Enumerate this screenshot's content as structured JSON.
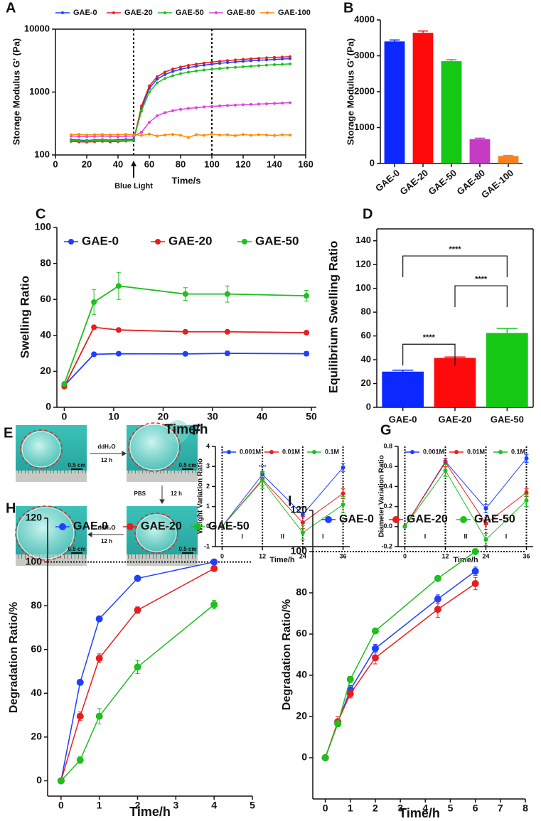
{
  "chart_data": [
    {
      "type": "line",
      "panel": "A",
      "ylabel": "Storage Modulus G' (Pa)",
      "xlabel": "Time/s",
      "annotation": "Blue Light",
      "log_y": true,
      "x": [
        10,
        15,
        20,
        25,
        30,
        35,
        40,
        45,
        50,
        55,
        60,
        65,
        70,
        75,
        80,
        85,
        90,
        95,
        100,
        105,
        110,
        115,
        120,
        125,
        130,
        135,
        140,
        145,
        150
      ],
      "xlim": [
        0,
        160
      ],
      "xticks": [
        0,
        20,
        40,
        60,
        80,
        100,
        120,
        140,
        160
      ],
      "ylim": [
        100,
        10000
      ],
      "yticks": [
        100,
        1000,
        10000
      ],
      "vlines": [
        50,
        100
      ],
      "series": [
        {
          "name": "GAE-0",
          "color": "#1f3fff",
          "values": [
            175,
            172,
            170,
            173,
            175,
            172,
            174,
            176,
            178,
            550,
            1150,
            1600,
            1900,
            2120,
            2300,
            2450,
            2570,
            2680,
            2780,
            2860,
            2940,
            3010,
            3080,
            3140,
            3200,
            3250,
            3300,
            3350,
            3400
          ]
        },
        {
          "name": "GAE-20",
          "color": "#e81e1e",
          "values": [
            165,
            162,
            160,
            163,
            165,
            162,
            164,
            166,
            168,
            600,
            1250,
            1750,
            2080,
            2320,
            2500,
            2650,
            2780,
            2890,
            2990,
            3080,
            3160,
            3240,
            3310,
            3380,
            3440,
            3500,
            3550,
            3600,
            3650
          ]
        },
        {
          "name": "GAE-50",
          "color": "#1fbf1f",
          "values": [
            170,
            168,
            166,
            170,
            172,
            170,
            168,
            170,
            172,
            500,
            1000,
            1400,
            1650,
            1820,
            1960,
            2070,
            2160,
            2240,
            2310,
            2370,
            2430,
            2480,
            2530,
            2580,
            2630,
            2680,
            2720,
            2760,
            2800
          ]
        },
        {
          "name": "GAE-80",
          "color": "#e040e0",
          "values": [
            200,
            198,
            196,
            198,
            200,
            198,
            197,
            199,
            200,
            230,
            330,
            420,
            470,
            505,
            530,
            550,
            565,
            580,
            592,
            603,
            612,
            620,
            628,
            636,
            644,
            652,
            660,
            668,
            676
          ]
        },
        {
          "name": "GAE-100",
          "color": "#ff8c00",
          "values": [
            210,
            212,
            208,
            210,
            211,
            209,
            210,
            212,
            210,
            205,
            215,
            200,
            208,
            212,
            206,
            190,
            210,
            205,
            214,
            207,
            209,
            203,
            211,
            206,
            210,
            208,
            204,
            209,
            207
          ]
        }
      ]
    },
    {
      "type": "bar",
      "panel": "B",
      "ylabel": "Storage Modulus G' (Pa)",
      "categories": [
        "GAE-0",
        "GAE-20",
        "GAE-50",
        "GAE-80",
        "GAE-100"
      ],
      "values": [
        3400,
        3640,
        2850,
        680,
        210
      ],
      "errors": [
        40,
        50,
        40,
        25,
        15
      ],
      "colors": [
        "#0a28ff",
        "#ff0a0a",
        "#14c814",
        "#c43cc4",
        "#f58220"
      ],
      "ylim": [
        0,
        4000
      ],
      "yticks": [
        0,
        1000,
        2000,
        3000,
        4000
      ]
    },
    {
      "type": "line",
      "panel": "C",
      "ylabel": "Swelling Ratio",
      "xlabel": "Time/h",
      "x": [
        0,
        6,
        11,
        24.5,
        33,
        49
      ],
      "xlim": [
        -1.5,
        51
      ],
      "xticks": [
        0,
        10,
        20,
        30,
        40,
        50
      ],
      "ylim": [
        0,
        100
      ],
      "yticks": [
        0,
        20,
        40,
        60,
        80,
        100
      ],
      "series": [
        {
          "name": "GAE-0",
          "color": "#1f3fff",
          "values": [
            12,
            29.5,
            29.8,
            29.7,
            30,
            29.8
          ],
          "errors": [
            1,
            1,
            1,
            1,
            1.2,
            1.2
          ]
        },
        {
          "name": "GAE-20",
          "color": "#e81e1e",
          "values": [
            11.5,
            44.5,
            43,
            42,
            42,
            41.5
          ],
          "errors": [
            1,
            1,
            1,
            0.6,
            0.6,
            0.6
          ]
        },
        {
          "name": "GAE-50",
          "color": "#1fbf1f",
          "values": [
            13,
            58.5,
            67.5,
            63,
            63,
            62
          ],
          "errors": [
            1,
            7,
            7.5,
            3.5,
            4.5,
            3
          ]
        }
      ]
    },
    {
      "type": "bar",
      "panel": "D",
      "ylabel": "Equilibrium Swelling Ratio",
      "categories": [
        "GAE-0",
        "GAE-20",
        "GAE-50"
      ],
      "values": [
        30,
        41.5,
        62.5
      ],
      "errors": [
        1.2,
        0.8,
        3.8
      ],
      "colors": [
        "#0a28ff",
        "#ff0a0a",
        "#14c814"
      ],
      "ylim": [
        0,
        150
      ],
      "yticks": [
        0,
        20,
        40,
        60,
        80,
        100,
        120,
        140
      ],
      "comparisons": [
        {
          "pair": [
            0,
            1
          ],
          "label": "****"
        },
        {
          "pair": [
            1,
            2
          ],
          "label": "****"
        },
        {
          "pair": [
            0,
            2
          ],
          "label": "****"
        }
      ]
    },
    {
      "type": "line",
      "panel": "F",
      "ylabel": "Weight Variation Ratio",
      "xlabel": "Time/h",
      "x": [
        0,
        12,
        24,
        36
      ],
      "xlim": [
        -2,
        38
      ],
      "xticks": [
        0,
        12,
        24,
        36
      ],
      "ylim": [
        -1,
        4
      ],
      "yticks": [
        -1,
        0,
        1,
        2,
        3,
        4
      ],
      "vlines": [
        0,
        12,
        24,
        36
      ],
      "regions": [
        "I",
        "II",
        "I"
      ],
      "sig_labels": [
        null,
        "****",
        "****",
        null
      ],
      "series": [
        {
          "name": "0.001M",
          "color": "#1f3fff",
          "values": [
            0,
            2.6,
            0.6,
            2.95
          ],
          "errors": [
            0,
            0.15,
            0.1,
            0.2
          ]
        },
        {
          "name": "0.01M",
          "color": "#e81e1e",
          "values": [
            0,
            2.35,
            0.2,
            1.65
          ],
          "errors": [
            0,
            0.3,
            0.3,
            0.25
          ]
        },
        {
          "name": "0.1M",
          "color": "#1fbf1f",
          "values": [
            0,
            2.3,
            -0.3,
            1.1
          ],
          "errors": [
            0,
            0.4,
            0.35,
            0.4
          ]
        }
      ]
    },
    {
      "type": "line",
      "panel": "G",
      "ylabel": "Diameter Variation Ratio",
      "xlabel": "Time/h",
      "x": [
        0,
        12,
        24,
        36
      ],
      "xlim": [
        -2,
        38
      ],
      "xticks": [
        0,
        12,
        24,
        36
      ],
      "ylim": [
        -0.2,
        0.8
      ],
      "yticks": [
        -0.2,
        {
          "value": 0,
          "label": "0.0"
        },
        0.2,
        0.4,
        0.6,
        0.8
      ],
      "vlines": [
        0,
        12,
        24,
        36
      ],
      "regions": [
        "I",
        "II",
        "I"
      ],
      "series": [
        {
          "name": "0.001M",
          "color": "#1f3fff",
          "values": [
            0,
            0.65,
            0.18,
            0.68
          ],
          "errors": [
            0,
            0.03,
            0.04,
            0.04
          ]
        },
        {
          "name": "0.01M",
          "color": "#e81e1e",
          "values": [
            0,
            0.64,
            0.03,
            0.34
          ],
          "errors": [
            0,
            0.04,
            0.06,
            0.04
          ]
        },
        {
          "name": "0.1M",
          "color": "#1fbf1f",
          "values": [
            0,
            0.56,
            -0.13,
            0.26
          ],
          "errors": [
            0,
            0.06,
            0.06,
            0.06
          ]
        }
      ]
    },
    {
      "type": "line",
      "panel": "H",
      "ylabel": "Degradation Ratio/%",
      "xlabel": "Time/h",
      "x": [
        0,
        0.5,
        1,
        2,
        4
      ],
      "xlim": [
        -0.35,
        5
      ],
      "xticks": [
        0,
        1,
        2,
        3,
        4,
        5
      ],
      "ylim": [
        -7,
        120
      ],
      "yticks": [
        0,
        20,
        40,
        60,
        80,
        100,
        120
      ],
      "hlines": [
        100
      ],
      "series": [
        {
          "name": "GAE-0",
          "color": "#1f3fff",
          "values": [
            0,
            45,
            74,
            92.5,
            100
          ],
          "errors": [
            0,
            1,
            1,
            1,
            1
          ]
        },
        {
          "name": "GAE-20",
          "color": "#e81e1e",
          "values": [
            0,
            29.5,
            56,
            78,
            97
          ],
          "errors": [
            0,
            2,
            2,
            1.5,
            1
          ]
        },
        {
          "name": "GAE-50",
          "color": "#1fbf1f",
          "values": [
            0,
            9.5,
            29.5,
            52,
            80.5
          ],
          "errors": [
            0,
            1.5,
            3.5,
            3,
            2
          ]
        }
      ]
    },
    {
      "type": "line",
      "panel": "I",
      "ylabel": "Degradation Ratio/%",
      "xlabel": "Time/h",
      "x": [
        0,
        0.5,
        1,
        2,
        4.5,
        6
      ],
      "xlim": [
        -0.5,
        8
      ],
      "xticks": [
        0,
        1,
        2,
        3,
        4,
        5,
        6,
        7,
        8
      ],
      "ylim": [
        -20,
        120
      ],
      "yticks": [
        0,
        20,
        40,
        60,
        80,
        100,
        120
      ],
      "hlines": [
        100
      ],
      "series": [
        {
          "name": "GAE-0",
          "color": "#1f3fff",
          "values": [
            0,
            17,
            33,
            53,
            77,
            90.5
          ],
          "errors": [
            0,
            1.5,
            2,
            2,
            2,
            2
          ]
        },
        {
          "name": "GAE-20",
          "color": "#e81e1e",
          "values": [
            0,
            17.5,
            31,
            48.5,
            72,
            84.5
          ],
          "errors": [
            0,
            2.5,
            2,
            3,
            4,
            3
          ]
        },
        {
          "name": "GAE-50",
          "color": "#1fbf1f",
          "values": [
            0,
            16.5,
            38,
            61.5,
            87,
            100
          ],
          "errors": [
            0,
            1,
            1.5,
            1,
            1,
            1
          ]
        }
      ]
    }
  ],
  "photo_panel": {
    "panel": "E",
    "scales": [
      "0.5 cm",
      "0.5 cm",
      "0.5 cm",
      "0.5 cm"
    ],
    "steps": [
      {
        "medium": "ddH₂O",
        "time": "12 h"
      },
      {
        "medium": "PBS",
        "time": "12 h"
      },
      {
        "medium": "ddH₂O",
        "time": "12 h"
      }
    ]
  }
}
